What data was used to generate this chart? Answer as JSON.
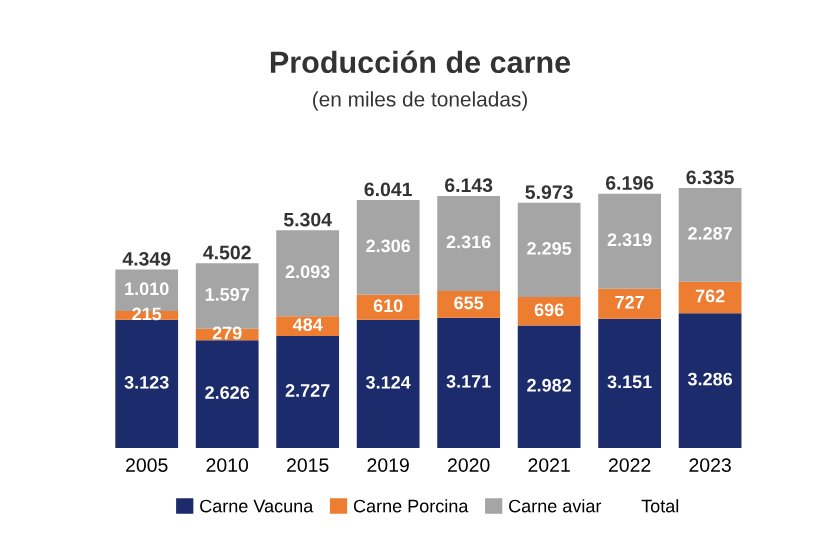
{
  "chart_data": {
    "type": "bar",
    "title": "Producción de carne",
    "subtitle": "(en miles de toneladas)",
    "stacked": true,
    "legend": "bottom",
    "grid": false,
    "categories": [
      "2005",
      "2010",
      "2015",
      "2019",
      "2020",
      "2021",
      "2022",
      "2023"
    ],
    "series": [
      {
        "name": "Carne Vacuna",
        "color": "#1c2b6b",
        "values": [
          3123,
          2626,
          2727,
          3124,
          3171,
          2982,
          3151,
          3286
        ],
        "value_labels": [
          "3.123",
          "2.626",
          "2.727",
          "3.124",
          "3.171",
          "2.982",
          "3.151",
          "3.286"
        ]
      },
      {
        "name": "Carne Porcina",
        "color": "#ed7d31",
        "values": [
          215,
          279,
          484,
          610,
          655,
          696,
          727,
          762
        ],
        "value_labels": [
          "215",
          "279",
          "484",
          "610",
          "655",
          "696",
          "727",
          "762"
        ]
      },
      {
        "name": "Carne aviar",
        "color": "#a5a5a5",
        "values": [
          1010,
          1597,
          2093,
          2306,
          2316,
          2295,
          2319,
          2287
        ],
        "value_labels": [
          "1.010",
          "1.597",
          "2.093",
          "2.306",
          "2.316",
          "2.295",
          "2.319",
          "2.287"
        ]
      }
    ],
    "totals": [
      "4.349",
      "4.502",
      "5.304",
      "6.041",
      "6.143",
      "5.973",
      "6.196",
      "6.335"
    ],
    "annotations": [
      "Total"
    ]
  }
}
